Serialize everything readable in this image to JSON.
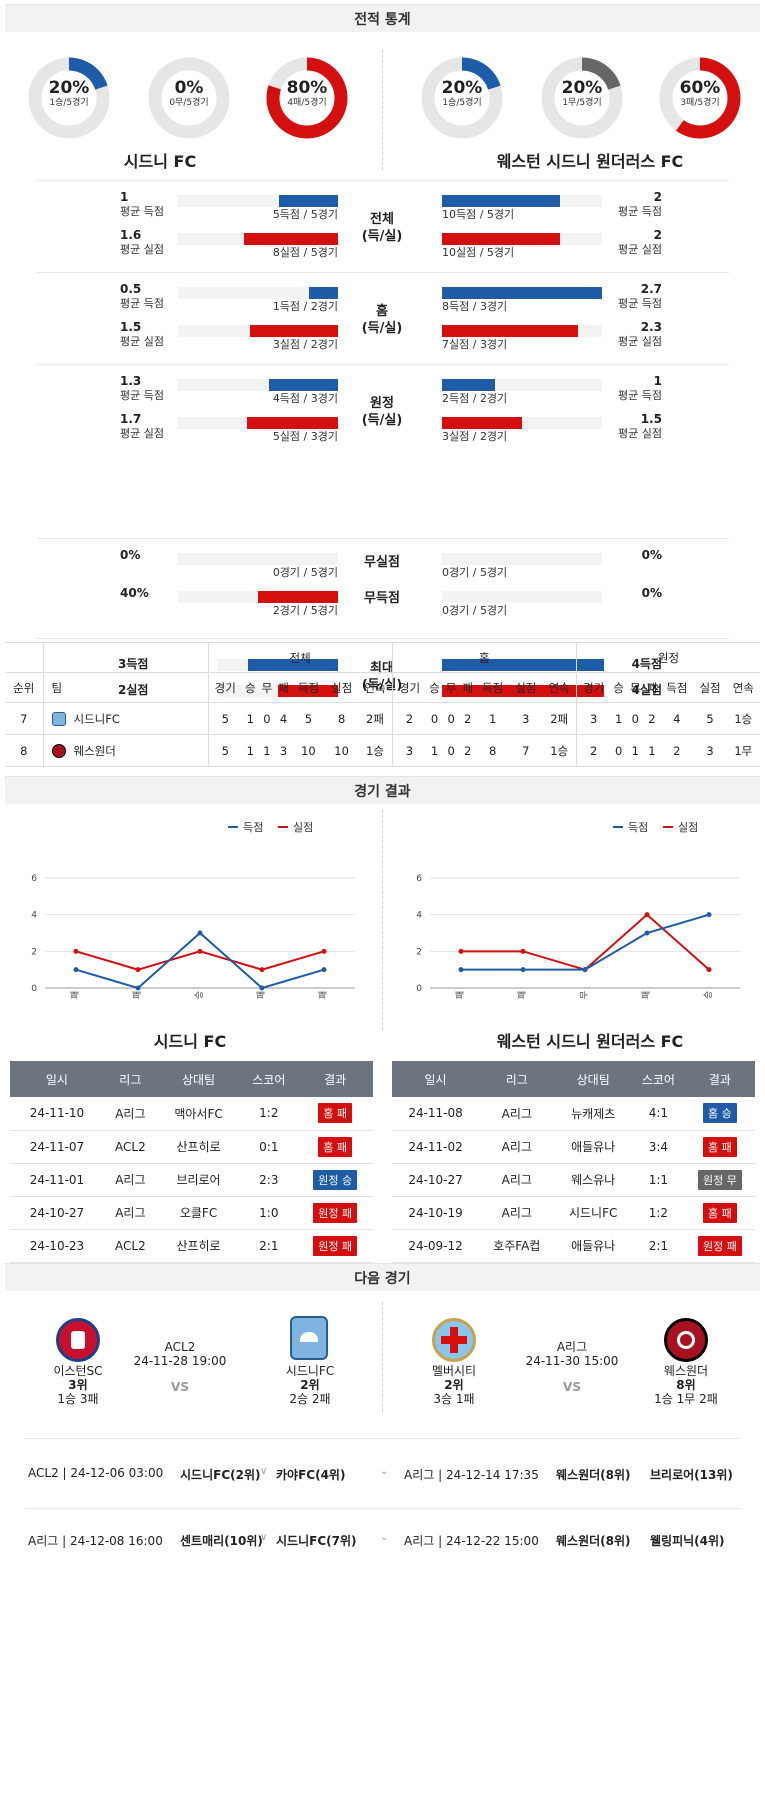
{
  "sections": {
    "stats": "전적 통계",
    "results": "경기 결과",
    "next": "다음 경기"
  },
  "home": {
    "name": "시드니 FC",
    "donuts": [
      {
        "pct": "20%",
        "sub": "1승/5경기",
        "frac": 0.2,
        "color": "#1f5ca8"
      },
      {
        "pct": "0%",
        "sub": "0무/5경기",
        "frac": 0,
        "color": "#666666"
      },
      {
        "pct": "80%",
        "sub": "4패/5경기",
        "frac": 0.8,
        "color": "#d40f0f"
      }
    ]
  },
  "away": {
    "name": "웨스턴 시드니 원더러스 FC",
    "donuts": [
      {
        "pct": "20%",
        "sub": "1승/5경기",
        "frac": 0.2,
        "color": "#1f5ca8"
      },
      {
        "pct": "20%",
        "sub": "1무/5경기",
        "frac": 0.2,
        "color": "#666666"
      },
      {
        "pct": "60%",
        "sub": "3패/5경기",
        "frac": 0.6,
        "color": "#d40f0f"
      }
    ]
  },
  "stat_blocks": [
    {
      "cat1": "전체",
      "cat2": "(득/실)",
      "rows": [
        {
          "hv": "1",
          "hl": "평균 득점",
          "hs": "5득점 / 5경기",
          "hf": 0.37,
          "av": "2",
          "al": "평균 득점",
          "as": "10득점 / 5경기",
          "af": 0.74,
          "c": "blue"
        },
        {
          "hv": "1.6",
          "hl": "평균 실점",
          "hs": "8실점 / 5경기",
          "hf": 0.59,
          "av": "2",
          "al": "평균 실점",
          "as": "10실점 / 5경기",
          "af": 0.74,
          "c": "red"
        }
      ]
    },
    {
      "cat1": "홈",
      "cat2": "(득/실)",
      "rows": [
        {
          "hv": "0.5",
          "hl": "평균 득점",
          "hs": "1득점 / 2경기",
          "hf": 0.18,
          "av": "2.7",
          "al": "평균 득점",
          "as": "8득점 / 3경기",
          "af": 1.0,
          "c": "blue"
        },
        {
          "hv": "1.5",
          "hl": "평균 실점",
          "hs": "3실점 / 2경기",
          "hf": 0.55,
          "av": "2.3",
          "al": "평균 실점",
          "as": "7실점 / 3경기",
          "af": 0.85,
          "c": "red"
        }
      ]
    },
    {
      "cat1": "원정",
      "cat2": "(득/실)",
      "rows": [
        {
          "hv": "1.3",
          "hl": "평균 득점",
          "hs": "4득점 / 3경기",
          "hf": 0.43,
          "av": "1",
          "al": "평균 득점",
          "as": "2득점 / 2경기",
          "af": 0.33,
          "c": "blue"
        },
        {
          "hv": "1.7",
          "hl": "평균 실점",
          "hs": "5실점 / 3경기",
          "hf": 0.57,
          "av": "1.5",
          "al": "평균 실점",
          "as": "3실점 / 2경기",
          "af": 0.5,
          "c": "red"
        }
      ]
    }
  ],
  "clean": {
    "cat_a": "무실점",
    "cat_b": "무득점",
    "rows": [
      {
        "hv": "0%",
        "hs": "0경기 / 5경기",
        "hf": 0,
        "av": "0%",
        "as": "0경기 / 5경기",
        "af": 0
      },
      {
        "hv": "40%",
        "hs": "2경기 / 5경기",
        "hf": 0.5,
        "av": "0%",
        "as": "0경기 / 5경기",
        "af": 0
      }
    ]
  },
  "max": {
    "cat1": "최대",
    "cat2": "(득/실)",
    "rows": [
      {
        "hv": "3득점",
        "hf": 0.75,
        "av": "4득점",
        "af": 1.0,
        "c": "blue"
      },
      {
        "hv": "2실점",
        "hf": 0.5,
        "av": "4실점",
        "af": 1.0,
        "c": "red"
      }
    ]
  },
  "standings": {
    "groups": [
      "전체",
      "홈",
      "원정"
    ],
    "cols": [
      "순위",
      "팀",
      "경기",
      "승",
      "무",
      "패",
      "득점",
      "실점",
      "연속",
      "경기",
      "승",
      "무",
      "패",
      "득점",
      "실점",
      "연속",
      "경기",
      "승",
      "무",
      "패",
      "득점",
      "실점",
      "연속"
    ],
    "rows": [
      {
        "rank": "7",
        "team": "시드니FC",
        "vals": [
          "5",
          "1",
          "0",
          "4",
          "5",
          "8",
          "2패",
          "2",
          "0",
          "0",
          "2",
          "1",
          "3",
          "2패",
          "3",
          "1",
          "0",
          "2",
          "4",
          "5",
          "1승"
        ]
      },
      {
        "rank": "8",
        "team": "웨스원더",
        "vals": [
          "5",
          "1",
          "1",
          "3",
          "10",
          "10",
          "1승",
          "3",
          "1",
          "0",
          "2",
          "8",
          "7",
          "1승",
          "2",
          "0",
          "1",
          "1",
          "2",
          "3",
          "1무"
        ]
      }
    ]
  },
  "charts": [
    {
      "legend": [
        "득점",
        "실점"
      ],
      "yticks": [
        "0",
        "2",
        "4",
        "6"
      ],
      "x": [
        "패",
        "패",
        "승",
        "패",
        "패"
      ],
      "scored": [
        1,
        0,
        3,
        0,
        1
      ],
      "conceded": [
        2,
        1,
        2,
        1,
        2
      ],
      "ylim": [
        0,
        6
      ]
    },
    {
      "legend": [
        "득점",
        "실점"
      ],
      "yticks": [
        "0",
        "2",
        "4",
        "6"
      ],
      "x": [
        "패",
        "패",
        "무",
        "패",
        "승"
      ],
      "scored": [
        1,
        1,
        1,
        3,
        4
      ],
      "conceded": [
        2,
        2,
        1,
        4,
        1
      ],
      "ylim": [
        0,
        6
      ]
    }
  ],
  "results_headers": [
    "일시",
    "리그",
    "상대팀",
    "스코어",
    "결과"
  ],
  "home_results": [
    {
      "d": "24-11-10",
      "l": "A리그",
      "o": "맥아서FC",
      "s": "1:2",
      "r": "홈 패",
      "c": "red"
    },
    {
      "d": "24-11-07",
      "l": "ACL2",
      "o": "산프히로",
      "s": "0:1",
      "r": "홈 패",
      "c": "red"
    },
    {
      "d": "24-11-01",
      "l": "A리그",
      "o": "브리로어",
      "s": "2:3",
      "r": "원정 승",
      "c": "blue"
    },
    {
      "d": "24-10-27",
      "l": "A리그",
      "o": "오클FC",
      "s": "1:0",
      "r": "원정 패",
      "c": "red"
    },
    {
      "d": "24-10-23",
      "l": "ACL2",
      "o": "산프히로",
      "s": "2:1",
      "r": "원정 패",
      "c": "red"
    }
  ],
  "away_results": [
    {
      "d": "24-11-08",
      "l": "A리그",
      "o": "뉴캐제츠",
      "s": "4:1",
      "r": "홈 승",
      "c": "blue"
    },
    {
      "d": "24-11-02",
      "l": "A리그",
      "o": "애들유나",
      "s": "3:4",
      "r": "홈 패",
      "c": "red"
    },
    {
      "d": "24-10-27",
      "l": "A리그",
      "o": "웨스유나",
      "s": "1:1",
      "r": "원정 무",
      "c": "gray"
    },
    {
      "d": "24-10-19",
      "l": "A리그",
      "o": "시드니FC",
      "s": "1:2",
      "r": "홈 패",
      "c": "red"
    },
    {
      "d": "24-09-12",
      "l": "호주FA컵",
      "o": "애들유나",
      "s": "2:1",
      "r": "원정 패",
      "c": "red"
    }
  ],
  "next_left": {
    "league": "ACL2",
    "date": "24-11-28 19:00",
    "vs": "VS",
    "t1": {
      "name": "이스턴SC",
      "rank": "3위",
      "rec": "1승 3패"
    },
    "t2": {
      "name": "시드니FC",
      "rank": "2위",
      "rec": "2승 2패"
    }
  },
  "next_right": {
    "league": "A리그",
    "date": "24-11-30 15:00",
    "vs": "VS",
    "t1": {
      "name": "멜버시티",
      "rank": "2위",
      "rec": "3승 1패"
    },
    "t2": {
      "name": "웨스원더",
      "rank": "8위",
      "rec": "1승 1무 2패"
    }
  },
  "upcoming": [
    {
      "l": "ACL2 | 24-12-06 03:00",
      "a": "시드니FC(2위)",
      "b": "카야FC(4위)",
      "r": "A리그 | 24-12-14 17:35",
      "ra": "웨스원더(8위)",
      "rb": "브리로어(13위)"
    },
    {
      "l": "A리그 | 24-12-08 16:00",
      "a": "센트매리(10위)",
      "b": "시드니FC(7위)",
      "r": "A리그 | 24-12-22 15:00",
      "ra": "웨스원더(8위)",
      "rb": "웰링피닉(4위)"
    }
  ]
}
